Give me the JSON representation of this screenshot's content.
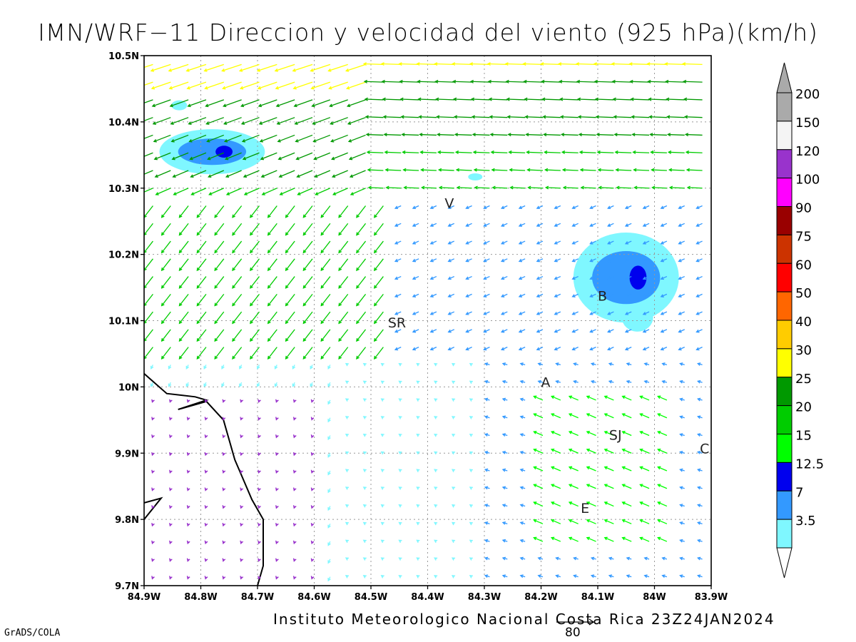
{
  "title": "IMN/WRF−11 Direccion y velocidad del viento (925 hPa)(km/h)",
  "footer_institution": "Instituto Meteorologico Nacional Costa Rica 23Z24JAN2024",
  "footer_software": "GrADS/COLA",
  "reference_vector_label": "80",
  "colors": {
    "speed_3_5": "#7ff7ff",
    "speed_7": "#3399ff",
    "speed_12_5": "#0000ee",
    "speed_15": "#00ff00",
    "speed_20": "#00cc00",
    "speed_25": "#009900",
    "speed_30": "#ffff00",
    "speed_40": "#ffcc00",
    "speed_50": "#ff6600",
    "speed_60": "#ff0000",
    "speed_75": "#cc3300",
    "speed_90": "#990000",
    "speed_100": "#ff00ff",
    "speed_120": "#9933cc",
    "speed_150": "#f4f4f4",
    "speed_200": "#aaaaaa"
  },
  "chart_data": {
    "type": "vector-field",
    "xlabel": "",
    "ylabel": "",
    "xlim": [
      -84.9,
      -83.9
    ],
    "ylim": [
      9.7,
      10.5
    ],
    "x_ticks": [
      "84.9W",
      "84.8W",
      "84.7W",
      "84.6W",
      "84.5W",
      "84.4W",
      "84.3W",
      "84.2W",
      "84.1W",
      "84W",
      "83.9W"
    ],
    "y_ticks": [
      "9.7N",
      "9.8N",
      "9.9N",
      "10N",
      "10.1N",
      "10.2N",
      "10.3N",
      "10.4N",
      "10.5N"
    ],
    "grid": true,
    "colorbar": {
      "position": "right",
      "labels": [
        "3.5",
        "7",
        "12.5",
        "15",
        "20",
        "25",
        "30",
        "40",
        "50",
        "60",
        "75",
        "90",
        "100",
        "120",
        "150",
        "200"
      ],
      "colors": [
        "#7ff7ff",
        "#3399ff",
        "#0000ee",
        "#00ff00",
        "#00cc00",
        "#009900",
        "#ffff00",
        "#ffcc00",
        "#ff6600",
        "#ff0000",
        "#cc3300",
        "#990000",
        "#ff00ff",
        "#9933cc",
        "#f4f4f4",
        "#aaaaaa"
      ]
    },
    "station_labels": [
      {
        "text": "V",
        "lon": -84.37,
        "lat": 10.27
      },
      {
        "text": "SR",
        "lon": -84.47,
        "lat": 10.09
      },
      {
        "text": "B",
        "lon": -84.1,
        "lat": 10.13
      },
      {
        "text": "A",
        "lon": -84.2,
        "lat": 10.0
      },
      {
        "text": "SJ",
        "lon": -84.08,
        "lat": 9.92
      },
      {
        "text": "C",
        "lon": -83.92,
        "lat": 9.9
      },
      {
        "text": "E",
        "lon": -84.13,
        "lat": 9.81
      }
    ],
    "shaded_regions": [
      {
        "name": "nw-core",
        "lon": -84.78,
        "lat": 10.355,
        "rx": 0.06,
        "ry": 0.02,
        "band": "7"
      },
      {
        "name": "ne-core",
        "lon": -84.05,
        "lat": 10.165,
        "rx": 0.06,
        "ry": 0.04,
        "band": "7"
      }
    ],
    "reference_vector": {
      "speed": 80,
      "units": "km/h"
    }
  }
}
